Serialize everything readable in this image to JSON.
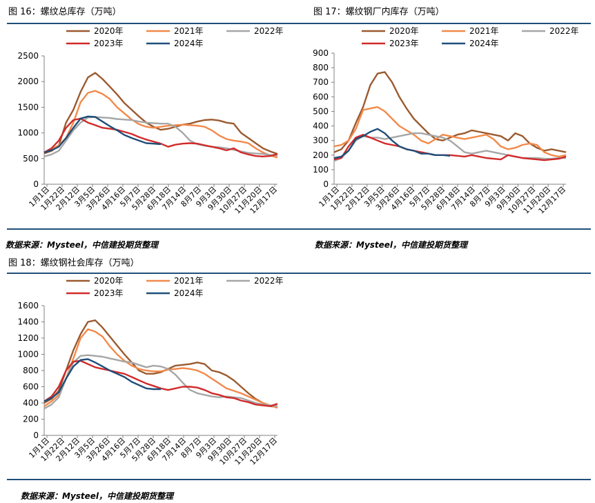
{
  "page": {
    "fig16_title": "图 16：螺纹总库存（万吨）",
    "fig17_title": "图 17：螺纹钢厂内库存（万吨）",
    "fig18_title": "图 18：螺纹钢社会库存（万吨）",
    "source_label": "数据来源：Mysteel，中信建投期货整理"
  },
  "series_colors": {
    "2020年": "#9b5a2e",
    "2021年": "#f2894a",
    "2022年": "#a6a6a6",
    "2023年": "#d12a2a",
    "2024年": "#1f4e79"
  },
  "chart_data": [
    {
      "id": "fig16",
      "type": "line",
      "title": "",
      "xlabel": "",
      "ylabel": "",
      "ylim": [
        0,
        2500
      ],
      "yticks": [
        0,
        500,
        1000,
        1500,
        2000,
        2500
      ],
      "x_ticklabels": [
        "1月1日",
        "1月22日",
        "2月12日",
        "3月5日",
        "3月26日",
        "4月16日",
        "5月7日",
        "5月28日",
        "6月18日",
        "7月14日",
        "8月7日",
        "9月3日",
        "9月30日",
        "10月27日",
        "11月20日",
        "12月17日"
      ],
      "legend": [
        "2020年",
        "2021年",
        "2022年",
        "2023年",
        "2024年"
      ],
      "series": [
        {
          "name": "2020年",
          "values": [
            600,
            650,
            750,
            1200,
            1450,
            1800,
            2080,
            2170,
            2050,
            1900,
            1750,
            1580,
            1450,
            1320,
            1200,
            1120,
            1060,
            1080,
            1120,
            1160,
            1180,
            1220,
            1250,
            1260,
            1240,
            1200,
            1180,
            1000,
            900,
            800,
            700,
            640,
            590
          ]
        },
        {
          "name": "2021年",
          "values": [
            620,
            680,
            760,
            900,
            1200,
            1600,
            1780,
            1820,
            1760,
            1660,
            1500,
            1380,
            1260,
            1170,
            1120,
            1100,
            1120,
            1140,
            1150,
            1160,
            1150,
            1140,
            1120,
            1050,
            950,
            880,
            850,
            830,
            800,
            700,
            620,
            560,
            520
          ]
        },
        {
          "name": "2022年",
          "values": [
            540,
            580,
            650,
            850,
            1050,
            1200,
            1300,
            1310,
            1300,
            1290,
            1270,
            1260,
            1250,
            1220,
            1200,
            1190,
            1180,
            1180,
            1120,
            1000,
            850,
            780,
            750,
            730,
            720,
            700,
            670,
            640,
            610,
            600,
            590,
            570,
            560
          ]
        },
        {
          "name": "2023年",
          "values": [
            620,
            700,
            850,
            1100,
            1250,
            1280,
            1200,
            1150,
            1100,
            1080,
            1060,
            1020,
            980,
            920,
            870,
            830,
            790,
            730,
            770,
            790,
            800,
            790,
            760,
            730,
            700,
            660,
            700,
            620,
            580,
            550,
            540,
            550,
            590
          ]
        },
        {
          "name": "2024年",
          "values": [
            620,
            660,
            730,
            900,
            1100,
            1280,
            1320,
            1310,
            1220,
            1130,
            1050,
            960,
            900,
            850,
            800,
            790,
            780
          ]
        }
      ]
    },
    {
      "id": "fig17",
      "type": "line",
      "title": "",
      "xlabel": "",
      "ylabel": "",
      "ylim": [
        0,
        900
      ],
      "yticks": [
        0,
        100,
        200,
        300,
        400,
        500,
        600,
        700,
        800,
        900
      ],
      "x_ticklabels": [
        "1月1日",
        "1月22日",
        "2月12日",
        "3月5日",
        "3月26日",
        "4月16日",
        "5月7日",
        "5月28日",
        "6月18日",
        "7月14日",
        "8月7日",
        "9月3日",
        "9月30日",
        "10月27日",
        "11月20日",
        "12月17日"
      ],
      "legend": [
        "2020年",
        "2021年",
        "2022年",
        "2023年",
        "2024年"
      ],
      "series": [
        {
          "name": "2020年",
          "values": [
            220,
            240,
            300,
            420,
            530,
            680,
            760,
            770,
            700,
            600,
            520,
            450,
            400,
            350,
            310,
            300,
            320,
            340,
            350,
            370,
            360,
            350,
            340,
            330,
            300,
            350,
            330,
            280,
            250,
            230,
            240,
            230,
            220
          ]
        },
        {
          "name": "2021年",
          "values": [
            260,
            270,
            300,
            380,
            510,
            520,
            530,
            500,
            450,
            400,
            370,
            340,
            300,
            280,
            310,
            340,
            330,
            320,
            310,
            320,
            330,
            340,
            310,
            260,
            240,
            250,
            270,
            280,
            270,
            220,
            200,
            190,
            200
          ]
        },
        {
          "name": "2022年",
          "values": [
            160,
            180,
            230,
            300,
            330,
            320,
            320,
            310,
            320,
            330,
            340,
            350,
            350,
            340,
            330,
            320,
            300,
            260,
            220,
            210,
            220,
            230,
            220,
            210,
            200,
            190,
            180,
            180,
            180,
            175,
            175,
            180,
            180
          ]
        },
        {
          "name": "2023年",
          "values": [
            170,
            180,
            260,
            320,
            340,
            320,
            300,
            280,
            270,
            260,
            240,
            230,
            220,
            210,
            200,
            200,
            200,
            195,
            190,
            200,
            190,
            180,
            175,
            170,
            200,
            190,
            180,
            175,
            170,
            165,
            170,
            175,
            190
          ]
        },
        {
          "name": "2024年",
          "values": [
            180,
            190,
            230,
            310,
            330,
            360,
            380,
            350,
            300,
            260,
            240,
            230,
            210,
            210,
            200,
            200,
            195
          ]
        }
      ]
    },
    {
      "id": "fig18",
      "type": "line",
      "title": "",
      "xlabel": "",
      "ylabel": "",
      "ylim": [
        0,
        1600
      ],
      "yticks": [
        0,
        200,
        400,
        600,
        800,
        1000,
        1200,
        1400,
        1600
      ],
      "x_ticklabels": [
        "1月1日",
        "1月22日",
        "2月12日",
        "3月5日",
        "3月26日",
        "4月16日",
        "5月7日",
        "5月28日",
        "6月18日",
        "7月14日",
        "8月7日",
        "9月3日",
        "9月30日",
        "10月27日",
        "11月20日",
        "12月17日"
      ],
      "legend": [
        "2020年",
        "2021年",
        "2022年",
        "2023年",
        "2024年"
      ],
      "series": [
        {
          "name": "2020年",
          "values": [
            400,
            450,
            550,
            800,
            1050,
            1250,
            1400,
            1420,
            1330,
            1220,
            1110,
            1000,
            900,
            800,
            760,
            760,
            780,
            820,
            860,
            870,
            880,
            900,
            880,
            800,
            780,
            740,
            680,
            600,
            520,
            450,
            400,
            360,
            350
          ]
        },
        {
          "name": "2021年",
          "values": [
            360,
            420,
            500,
            700,
            950,
            1200,
            1310,
            1280,
            1220,
            1100,
            1000,
            920,
            860,
            820,
            800,
            790,
            790,
            810,
            820,
            830,
            820,
            800,
            760,
            700,
            640,
            580,
            550,
            520,
            480,
            440,
            400,
            370,
            340
          ]
        },
        {
          "name": "2022年",
          "values": [
            330,
            380,
            470,
            700,
            900,
            980,
            990,
            980,
            970,
            950,
            930,
            910,
            900,
            870,
            840,
            860,
            850,
            820,
            750,
            650,
            560,
            520,
            500,
            480,
            470,
            480,
            470,
            460,
            430,
            400,
            380,
            370,
            360
          ]
        },
        {
          "name": "2023年",
          "values": [
            420,
            480,
            600,
            800,
            910,
            920,
            880,
            840,
            820,
            800,
            780,
            760,
            720,
            680,
            640,
            610,
            580,
            560,
            580,
            600,
            600,
            590,
            560,
            520,
            500,
            470,
            460,
            430,
            410,
            380,
            370,
            360,
            390
          ]
        },
        {
          "name": "2024年",
          "values": [
            420,
            460,
            530,
            700,
            850,
            930,
            940,
            900,
            850,
            800,
            760,
            720,
            660,
            620,
            580,
            570,
            570
          ]
        }
      ]
    }
  ]
}
